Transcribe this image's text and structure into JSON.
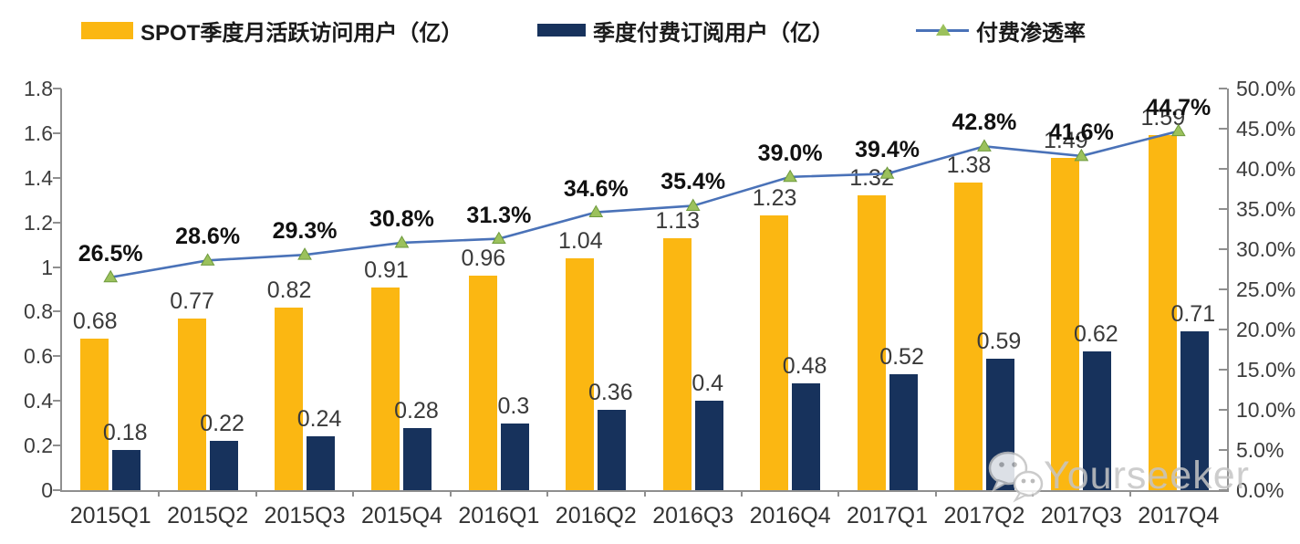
{
  "legend": [
    {
      "label": "SPOT季度月活跃访问用户（亿）",
      "type": "bar",
      "color": "#FBB712"
    },
    {
      "label": "季度付费订阅用户（亿）",
      "type": "bar",
      "color": "#17325C"
    },
    {
      "label": "付费渗透率",
      "type": "line",
      "color": "#4A72B8",
      "marker_color": "#9BC15C"
    }
  ],
  "chart_data": {
    "type": "combo",
    "title": "",
    "categories": [
      "2015Q1",
      "2015Q2",
      "2015Q3",
      "2015Q4",
      "2016Q1",
      "2016Q2",
      "2016Q3",
      "2016Q4",
      "2017Q1",
      "2017Q2",
      "2017Q3",
      "2017Q4"
    ],
    "series": [
      {
        "name": "SPOT季度月活跃访问用户（亿）",
        "type": "bar",
        "axis": "left",
        "color": "#FBB712",
        "values": [
          0.68,
          0.77,
          0.82,
          0.91,
          0.96,
          1.04,
          1.13,
          1.23,
          1.32,
          1.38,
          1.49,
          1.59
        ],
        "labels": [
          "0.68",
          "0.77",
          "0.82",
          "0.91",
          "0.96",
          "1.04",
          "1.13",
          "1.23",
          "1.32",
          "1.38",
          "1.49",
          "1.59"
        ]
      },
      {
        "name": "季度付费订阅用户（亿）",
        "type": "bar",
        "axis": "left",
        "color": "#17325C",
        "values": [
          0.18,
          0.22,
          0.24,
          0.28,
          0.3,
          0.36,
          0.4,
          0.48,
          0.52,
          0.59,
          0.62,
          0.71
        ],
        "labels": [
          "0.18",
          "0.22",
          "0.24",
          "0.28",
          "0.3",
          "0.36",
          "0.4",
          "0.48",
          "0.52",
          "0.59",
          "0.62",
          "0.71"
        ]
      },
      {
        "name": "付费渗透率",
        "type": "line",
        "axis": "right",
        "color": "#4A72B8",
        "marker": "triangle",
        "marker_color": "#9BC15C",
        "marker_edge_color": "#6E9A3D",
        "values": [
          26.5,
          28.6,
          29.3,
          30.8,
          31.3,
          34.6,
          35.4,
          39.0,
          39.4,
          42.8,
          41.6,
          44.7
        ],
        "labels": [
          "26.5%",
          "28.6%",
          "29.3%",
          "30.8%",
          "31.3%",
          "34.6%",
          "35.4%",
          "39.0%",
          "39.4%",
          "42.8%",
          "41.6%",
          "44.7%"
        ]
      }
    ],
    "left_axis": {
      "min": 0,
      "max": 1.8,
      "step": 0.2,
      "tick_labels": [
        "1.8",
        "1.6",
        "1.4",
        "1.2",
        "1",
        "0.8",
        "0.6",
        "0.4",
        "0.2",
        "0"
      ]
    },
    "right_axis": {
      "min": 0,
      "max": 50,
      "step": 5,
      "tick_labels": [
        "50.0%",
        "45.0%",
        "40.0%",
        "35.0%",
        "30.0%",
        "25.0%",
        "20.0%",
        "15.0%",
        "10.0%",
        "5.0%",
        "0.0%"
      ]
    },
    "grid": false,
    "legend_position": "top"
  },
  "watermark": {
    "text": "Yourseeker",
    "icon": "wechat-icon",
    "color": "#C5C5C5"
  }
}
